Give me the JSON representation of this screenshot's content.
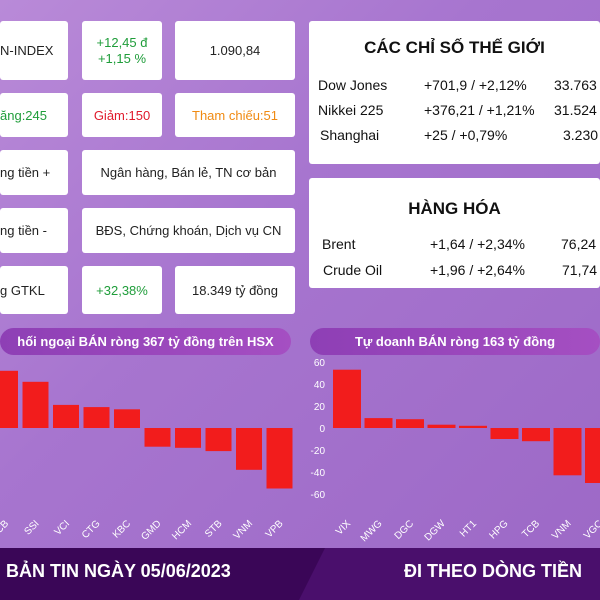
{
  "market": {
    "index_name": "N-INDEX",
    "index_change": "+12,45 đ",
    "index_change_pct": "+1,15 %",
    "index_value": "1.090,84",
    "up": "ăng:245",
    "down": "Giảm:150",
    "ref": "Tham chiếu:51",
    "inflow_label": "ng tiền +",
    "inflow_sectors": "Ngân hàng, Bán lẻ, TN cơ bản",
    "outflow_label": "ng tiền -",
    "outflow_sectors": "BĐS, Chứng khoán, Dịch vụ CN",
    "gtkl_label": "g GTKL",
    "gtkl_pct": "+32,38%",
    "gtkl_value": "18.349 tỷ đồng"
  },
  "world": {
    "title": "CÁC CHỈ SỐ THẾ GIỚI",
    "rows": [
      {
        "name": "Dow Jones",
        "change": "+701,9 / +2,12%",
        "value": "33.763"
      },
      {
        "name": "Nikkei 225",
        "change": "+376,21 / +1,21%",
        "value": "31.524"
      },
      {
        "name": "Shanghai",
        "change": "+25 / +0,79%",
        "value": "3.230"
      }
    ]
  },
  "commodities": {
    "title": "HÀNG HÓA",
    "rows": [
      {
        "name": "Brent",
        "change": "+1,64 / +2,34%",
        "value": "76,24"
      },
      {
        "name": "Crude Oil",
        "change": "+1,96 / +2,64%",
        "value": "71,74"
      }
    ]
  },
  "colors": {
    "bar": "#f21c1c",
    "positive": "#1f9d3a",
    "negative": "#e0192b",
    "reference": "#f08a12"
  },
  "footer": {
    "left": "BẢN TIN NGÀY 05/06/2023",
    "right": "ĐI THEO DÒNG TIỀN"
  },
  "chart_data": [
    {
      "type": "bar",
      "title": "hối ngoại BÁN ròng 367 tỷ đồng trên HSX",
      "categories": [
        "CB",
        "SSI",
        "VCI",
        "CTG",
        "KBC",
        "GMD",
        "HCM",
        "STB",
        "VNM",
        "VPB"
      ],
      "values": [
        52,
        42,
        21,
        19,
        17,
        -17,
        -18,
        -21,
        -38,
        -55
      ],
      "ylim": [
        -60,
        60
      ]
    },
    {
      "type": "bar",
      "title": "Tự doanh BÁN ròng 163 tỷ đồng",
      "categories": [
        "VIX",
        "MWG",
        "DGC",
        "DGW",
        "HT1",
        "HPG",
        "TCB",
        "VNM",
        "VGC"
      ],
      "values": [
        53,
        9,
        8,
        3,
        2,
        -10,
        -12,
        -43,
        -50
      ],
      "yticks": [
        60,
        40,
        20,
        0,
        -20,
        -40,
        -60
      ],
      "ylim": [
        -60,
        60
      ]
    }
  ]
}
